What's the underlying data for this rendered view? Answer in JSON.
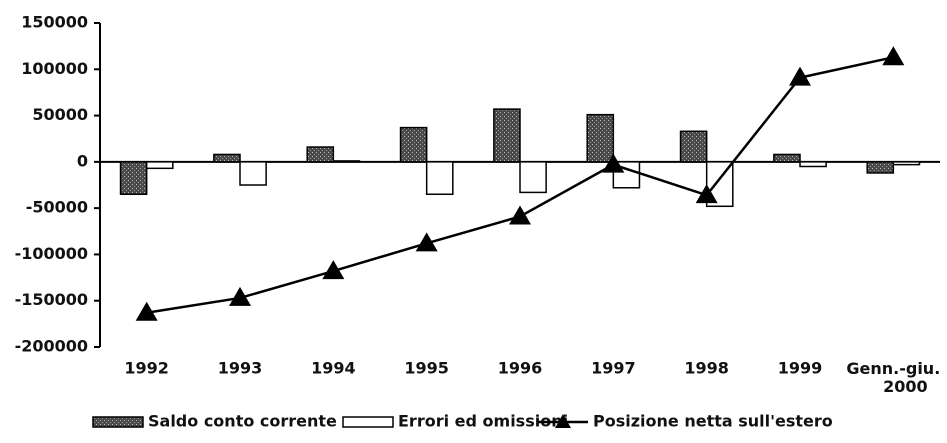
{
  "chart_data": {
    "type": "bar",
    "categories": [
      "1992",
      "1993",
      "1994",
      "1995",
      "1996",
      "1997",
      "1998",
      "1999",
      "Genn.-giu. 2000"
    ],
    "series": [
      {
        "name": "Saldo conto corrente",
        "type": "bar",
        "color": "#4a4a4a",
        "values": [
          -35000,
          8000,
          16000,
          37000,
          57000,
          51000,
          33000,
          8000,
          -12000
        ]
      },
      {
        "name": "Errori ed omissioni",
        "type": "bar",
        "color": "#ffffff",
        "values": [
          -7000,
          -25000,
          1000,
          -35000,
          -33000,
          -28000,
          -48000,
          -5000,
          -3000
        ]
      },
      {
        "name": "Posizione netta sull'estero",
        "type": "line",
        "color": "#000000",
        "values": [
          -163000,
          -147000,
          -118000,
          -88000,
          -59000,
          -3000,
          -36000,
          91000,
          113000
        ]
      }
    ],
    "ylim": [
      -200000,
      150000
    ],
    "yticks": [
      -200000,
      -150000,
      -100000,
      -50000,
      0,
      50000,
      100000,
      150000
    ],
    "grid": false,
    "legend": "bottom"
  }
}
